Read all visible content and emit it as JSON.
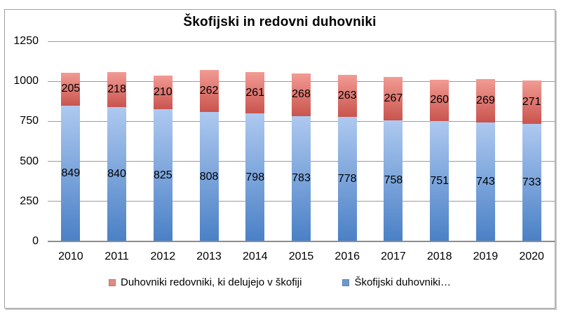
{
  "chart_data": {
    "type": "bar",
    "stacked": true,
    "title": "Škofijski in redovni duhovniki",
    "categories": [
      "2010",
      "2011",
      "2012",
      "2013",
      "2014",
      "2015",
      "2016",
      "2017",
      "2018",
      "2019",
      "2020"
    ],
    "series": [
      {
        "name": "Škofijski duhovniki…",
        "role": "bottom-segment",
        "color_top": "#AEC9F0",
        "color_bottom": "#4A80C6",
        "values": [
          849,
          840,
          825,
          808,
          798,
          783,
          778,
          758,
          751,
          743,
          733
        ]
      },
      {
        "name": "Duhovniki redovniki, ki delujejo v škofiji",
        "role": "top-segment",
        "color_top": "#F29B94",
        "color_bottom": "#C9544E",
        "values": [
          205,
          218,
          210,
          262,
          261,
          268,
          263,
          267,
          260,
          269,
          271
        ]
      }
    ],
    "ylim": [
      0,
      1250
    ],
    "yticks": [
      0,
      250,
      500,
      750,
      1000,
      1250
    ],
    "xlabel": "",
    "ylabel": "",
    "grid": true,
    "data_labels": true,
    "legend_position": "bottom"
  },
  "legend": {
    "items": [
      {
        "label": "Duhovniki redovniki, ki delujejo v škofiji",
        "marker_color": "#DF8A84"
      },
      {
        "label": "Škofijski duhovniki…",
        "marker_color": "#6D99D1"
      }
    ]
  },
  "colors": {
    "gridline": "#9B9B9B",
    "axis_line": "#8C8C8C",
    "frame_border": "#A0A0A0",
    "frame_shadow": "#C9C9C9",
    "text": "#000000",
    "background": "#FFFFFF"
  }
}
